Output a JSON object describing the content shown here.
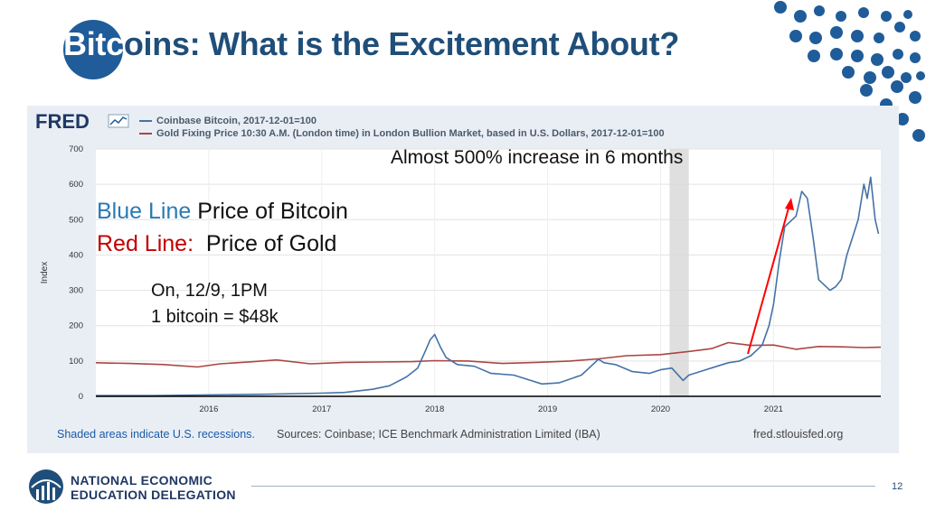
{
  "slide": {
    "title_part1": "Bitc",
    "title_part2": "oins: What is the Excitement About?",
    "page_number": "12"
  },
  "annotations": {
    "top": "Almost 500% increase in 6 months",
    "legend_blue_key": "Blue Line",
    "legend_blue_text": " Price of Bitcoin",
    "legend_red_key": "Red Line:",
    "legend_red_text": "  Price of Gold",
    "price_line1": "On, 12/9, 1PM",
    "price_line2": "1 bitcoin = $48k"
  },
  "footer": {
    "org_line1": "NATIONAL ECONOMIC",
    "org_line2": "EDUCATION DELEGATION"
  },
  "chart_data": {
    "type": "line",
    "brand": "FRED",
    "ylabel": "Index",
    "ylim": [
      0,
      700
    ],
    "y_ticks": [
      0,
      100,
      200,
      300,
      400,
      500,
      600,
      700
    ],
    "x_ticks": [
      2016,
      2017,
      2018,
      2019,
      2020,
      2021
    ],
    "xlim": [
      2015.0,
      2021.95
    ],
    "recession": [
      2020.08,
      2020.25
    ],
    "legend": [
      {
        "name": "Coinbase Bitcoin, 2017-12-01=100",
        "color": "#4572a7"
      },
      {
        "name": "Gold Fixing Price 10:30 A.M. (London time) in London Bullion Market, based in U.S. Dollars, 2017-12-01=100",
        "color": "#aa4643"
      }
    ],
    "footer_left": "Shaded areas indicate U.S. recessions.",
    "footer_sources": "Sources: Coinbase; ICE Benchmark Administration Limited (IBA)",
    "footer_right": "fred.stlouisfed.org",
    "series": [
      {
        "name": "Coinbase Bitcoin, 2017-12-01=100",
        "color": "#4572a7",
        "x": [
          2015.0,
          2015.5,
          2016.0,
          2016.5,
          2017.0,
          2017.2,
          2017.45,
          2017.6,
          2017.75,
          2017.85,
          2017.92,
          2017.96,
          2018.0,
          2018.05,
          2018.1,
          2018.2,
          2018.35,
          2018.5,
          2018.7,
          2018.85,
          2018.95,
          2019.1,
          2019.3,
          2019.45,
          2019.5,
          2019.6,
          2019.75,
          2019.9,
          2020.0,
          2020.1,
          2020.2,
          2020.25,
          2020.4,
          2020.5,
          2020.6,
          2020.7,
          2020.8,
          2020.9,
          2020.96,
          2021.0,
          2021.05,
          2021.1,
          2021.2,
          2021.25,
          2021.3,
          2021.35,
          2021.4,
          2021.5,
          2021.55,
          2021.6,
          2021.65,
          2021.7,
          2021.75,
          2021.8,
          2021.83,
          2021.86,
          2021.9,
          2021.93
        ],
        "y": [
          2,
          2,
          4,
          6,
          9,
          11,
          20,
          30,
          55,
          80,
          130,
          160,
          175,
          140,
          110,
          90,
          85,
          65,
          60,
          45,
          35,
          38,
          60,
          105,
          95,
          90,
          70,
          65,
          75,
          80,
          45,
          60,
          75,
          85,
          95,
          100,
          115,
          145,
          200,
          260,
          380,
          480,
          510,
          580,
          560,
          450,
          330,
          300,
          310,
          330,
          400,
          450,
          500,
          600,
          560,
          620,
          500,
          460
        ]
      },
      {
        "name": "Gold Fixing Price 10:30 A.M. (London time) in London Bullion Market, based in U.S. Dollars, 2017-12-01=100",
        "color": "#aa4643",
        "x": [
          2015.0,
          2015.3,
          2015.6,
          2015.9,
          2016.1,
          2016.4,
          2016.6,
          2016.9,
          2017.2,
          2017.5,
          2017.8,
          2018.0,
          2018.3,
          2018.6,
          2018.9,
          2019.2,
          2019.45,
          2019.7,
          2020.0,
          2020.2,
          2020.45,
          2020.6,
          2020.8,
          2021.0,
          2021.2,
          2021.4,
          2021.6,
          2021.8,
          2021.95
        ],
        "y": [
          95,
          93,
          90,
          83,
          92,
          98,
          103,
          92,
          96,
          97,
          98,
          101,
          100,
          93,
          96,
          100,
          106,
          115,
          118,
          125,
          135,
          152,
          144,
          145,
          133,
          141,
          140,
          138,
          139
        ]
      }
    ]
  }
}
